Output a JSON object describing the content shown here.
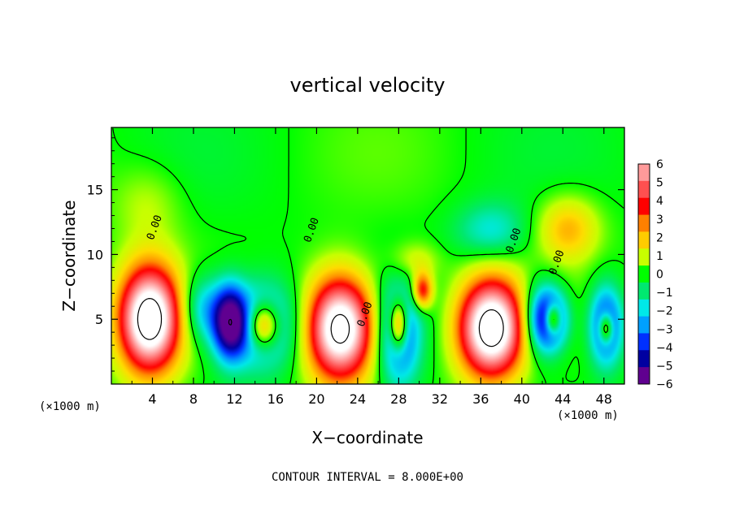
{
  "chart_data": {
    "type": "heatmap",
    "title": "vertical velocity",
    "xlabel": "X−coordinate",
    "ylabel": "Z−coordinate",
    "x_unit_label": "(×1000 m)",
    "z_unit_label": "(×1000 m)",
    "footer": "CONTOUR INTERVAL = 8.000E+00",
    "xlim": [
      0,
      50
    ],
    "ylim": [
      0,
      19.8
    ],
    "x_ticks": [
      4,
      8,
      12,
      16,
      20,
      24,
      28,
      32,
      36,
      40,
      44,
      48
    ],
    "y_ticks": [
      5,
      10,
      15
    ],
    "colorbar": {
      "ticks": [
        "6",
        "5",
        "4",
        "3",
        "2",
        "1",
        "0",
        "−1",
        "−2",
        "−3",
        "−4",
        "−5",
        "−6"
      ],
      "colors": [
        "#ff9a9a",
        "#ff5050",
        "#ff0000",
        "#ff8000",
        "#ffcc00",
        "#c8ff00",
        "#00ff00",
        "#00e870",
        "#00e8e8",
        "#00a0ff",
        "#0030ff",
        "#0000a0",
        "#600090"
      ]
    },
    "contour_labels": [
      {
        "text": "0.00",
        "x": 4.5,
        "z": 12.0
      },
      {
        "text": "0.00",
        "x": 19.8,
        "z": 11.8
      },
      {
        "text": "0.00",
        "x": 25.0,
        "z": 5.3
      },
      {
        "text": "0.00",
        "x": 39.5,
        "z": 11.0
      },
      {
        "text": "0.00",
        "x": 43.7,
        "z": 9.3
      }
    ],
    "features": [
      {
        "sign": "up",
        "x": 3.7,
        "z": 5.0,
        "rx": 3.0,
        "rz": 4.1,
        "amp": 9
      },
      {
        "sign": "down",
        "x": 8.8,
        "z": 5.8,
        "rx": 2.0,
        "rz": 2.6,
        "amp": -2.6
      },
      {
        "sign": "down",
        "x": 11.5,
        "z": 4.8,
        "rx": 1.6,
        "rz": 2.8,
        "amp": -6
      },
      {
        "sign": "down",
        "x": 14.5,
        "z": 4.5,
        "rx": 3.5,
        "rz": 3.2,
        "amp": -4.5
      },
      {
        "sign": "up",
        "x": 14.8,
        "z": 4.5,
        "rx": 1.6,
        "rz": 1.8,
        "amp": 6
      },
      {
        "sign": "up",
        "x": 22.3,
        "z": 4.3,
        "rx": 3.3,
        "rz": 4.0,
        "amp": 9
      },
      {
        "sign": "down",
        "x": 28.0,
        "z": 3.8,
        "rx": 2.0,
        "rz": 3.8,
        "amp": -4.5
      },
      {
        "sign": "up",
        "x": 28.0,
        "z": 4.5,
        "rx": 0.9,
        "rz": 2.0,
        "amp": 6
      },
      {
        "sign": "up",
        "x": 30.3,
        "z": 7.2,
        "rx": 1.0,
        "rz": 1.4,
        "amp": 4.5
      },
      {
        "sign": "up",
        "x": 37.0,
        "z": 4.3,
        "rx": 3.2,
        "rz": 3.8,
        "amp": 9
      },
      {
        "sign": "down",
        "x": 41.8,
        "z": 5.0,
        "rx": 1.8,
        "rz": 2.8,
        "amp": -3.5
      },
      {
        "sign": "down",
        "x": 43.0,
        "z": 5.0,
        "rx": 1.6,
        "rz": 2.2,
        "amp": -4.5
      },
      {
        "sign": "up",
        "x": 43.0,
        "z": 5.0,
        "rx": 0.8,
        "rz": 1.2,
        "amp": 6
      },
      {
        "sign": "down",
        "x": 48.2,
        "z": 4.5,
        "rx": 1.6,
        "rz": 3.0,
        "amp": -5
      },
      {
        "sign": "up",
        "x": 48.2,
        "z": 4.3,
        "rx": 0.7,
        "rz": 1.2,
        "amp": 5
      },
      {
        "sign": "up",
        "x": 44.5,
        "z": 12.0,
        "rx": 3.0,
        "rz": 2.5,
        "amp": 2.5
      },
      {
        "sign": "up",
        "x": 3.5,
        "z": 14.0,
        "rx": 3.5,
        "rz": 3.0,
        "amp": 1.0
      },
      {
        "sign": "down",
        "x": 37.0,
        "z": 11.8,
        "rx": 3.5,
        "rz": 2.2,
        "amp": -2.0
      },
      {
        "sign": "up",
        "x": 29.5,
        "z": 9.5,
        "rx": 2.5,
        "rz": 1.5,
        "amp": 1.5
      }
    ]
  }
}
